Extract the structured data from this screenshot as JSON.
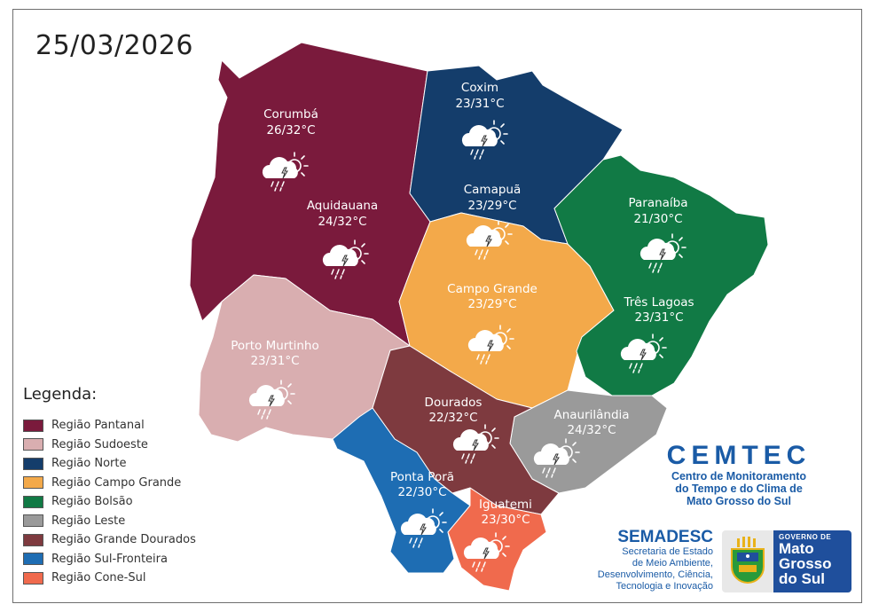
{
  "date": "25/03/2026",
  "regions": [
    {
      "name": "Região Pantanal",
      "color": "#7a1a3c"
    },
    {
      "name": "Região Sudoeste",
      "color": "#d9aeb0"
    },
    {
      "name": "Região Norte",
      "color": "#143d6b"
    },
    {
      "name": "Região Campo Grande",
      "color": "#f3a94a"
    },
    {
      "name": "Região Bolsão",
      "color": "#117a45"
    },
    {
      "name": "Região Leste",
      "color": "#9a9a9a"
    },
    {
      "name": "Região Grande Dourados",
      "color": "#7e3a3f"
    },
    {
      "name": "Região Sul-Fronteira",
      "color": "#1e6db3"
    },
    {
      "name": "Região Cone-Sul",
      "color": "#f06a4d"
    }
  ],
  "legend_title": "Legenda:",
  "cities": [
    {
      "name": "Corumbá",
      "temp": "26/32°C",
      "icon": "partly-cloudy-thunderstorm-rain-icon"
    },
    {
      "name": "Aquidauana",
      "temp": "24/32°C",
      "icon": "partly-cloudy-thunderstorm-rain-icon"
    },
    {
      "name": "Coxim",
      "temp": "23/31°C",
      "icon": "partly-cloudy-thunderstorm-rain-icon"
    },
    {
      "name": "Camapuã",
      "temp": "23/29°C",
      "icon": "partly-cloudy-thunderstorm-rain-icon"
    },
    {
      "name": "Paranaíba",
      "temp": "21/30°C",
      "icon": "partly-cloudy-thunderstorm-rain-icon"
    },
    {
      "name": "Campo Grande",
      "temp": "23/29°C",
      "icon": "partly-cloudy-thunderstorm-rain-icon"
    },
    {
      "name": "Três Lagoas",
      "temp": "23/31°C",
      "icon": "partly-cloudy-thunderstorm-rain-icon"
    },
    {
      "name": "Porto Murtinho",
      "temp": "23/31°C",
      "icon": "partly-cloudy-thunderstorm-rain-icon"
    },
    {
      "name": "Dourados",
      "temp": "22/32°C",
      "icon": "partly-cloudy-thunderstorm-rain-icon"
    },
    {
      "name": "Anaurilândia",
      "temp": "24/32°C",
      "icon": "partly-cloudy-thunderstorm-rain-icon"
    },
    {
      "name": "Ponta Porã",
      "temp": "22/30°C",
      "icon": "partly-cloudy-thunderstorm-rain-icon"
    },
    {
      "name": "Iguatemi",
      "temp": "23/30°C",
      "icon": "partly-cloudy-thunderstorm-rain-icon"
    }
  ],
  "cemtec": {
    "title": "CEMTEC",
    "line1": "Centro de Monitoramento",
    "line2": "do Tempo e do Clima de",
    "line3": "Mato Grosso do Sul"
  },
  "semadesc": {
    "title": "SEMADESC",
    "line1": "Secretaria de Estado",
    "line2": "de Meio Ambiente,",
    "line3": "Desenvolvimento, Ciência,",
    "line4": "Tecnologia e Inovação"
  },
  "governo": {
    "top": "GOVERNO DE",
    "line1": "Mato",
    "line2": "Grosso",
    "line3": "do Sul"
  }
}
